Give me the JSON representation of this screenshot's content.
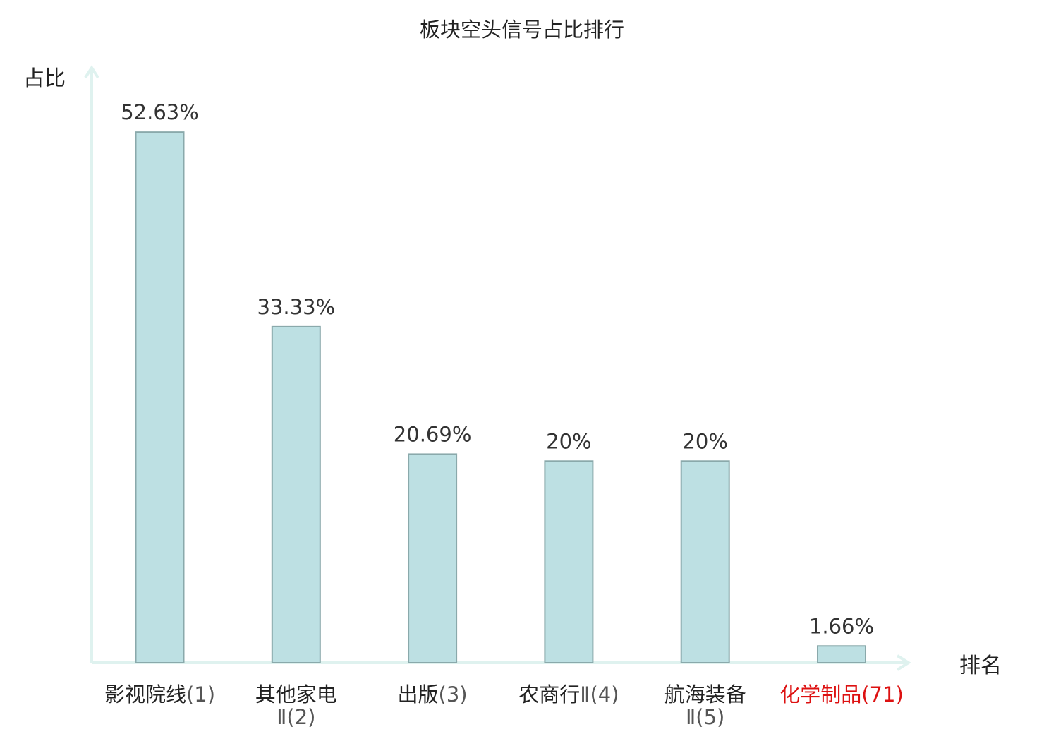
{
  "chart_data": {
    "type": "bar",
    "title": "板块空头信号占比排行",
    "ylabel": "占比",
    "xlabel": "排名",
    "ylim": [
      0,
      56
    ],
    "grid": false,
    "legend": "none",
    "categories": [
      "影视院线(1)",
      "其他家电Ⅱ(2)",
      "出版(3)",
      "农商行Ⅱ(4)",
      "航海装备Ⅱ(5)",
      "化学制品(71)"
    ],
    "category_lines": [
      [
        {
          "name": "影视院线",
          "rank": "(1)"
        }
      ],
      [
        {
          "name": "其他家电",
          "rank": ""
        },
        {
          "name": "",
          "rank": "Ⅱ(2)"
        }
      ],
      [
        {
          "name": "出版",
          "rank": "(3)"
        }
      ],
      [
        {
          "name": "农商行",
          "rank": "Ⅱ(4)"
        }
      ],
      [
        {
          "name": "航海装备",
          "rank": ""
        },
        {
          "name": "",
          "rank": "Ⅱ(5)"
        }
      ],
      [
        {
          "name": "化学制品",
          "rank": "(71)"
        }
      ]
    ],
    "highlight_index": 5,
    "values": [
      52.63,
      33.33,
      20.69,
      20,
      20,
      1.66
    ],
    "value_labels": [
      "52.63%",
      "33.33%",
      "20.69%",
      "20%",
      "20%",
      "1.66%"
    ]
  },
  "colors": {
    "bar_fill": "#bde0e3",
    "bar_stroke": "#8aa9ab",
    "axis": "#dff2ef",
    "text": "#222222",
    "value_text": "#333333",
    "highlight": "#dd1111"
  }
}
